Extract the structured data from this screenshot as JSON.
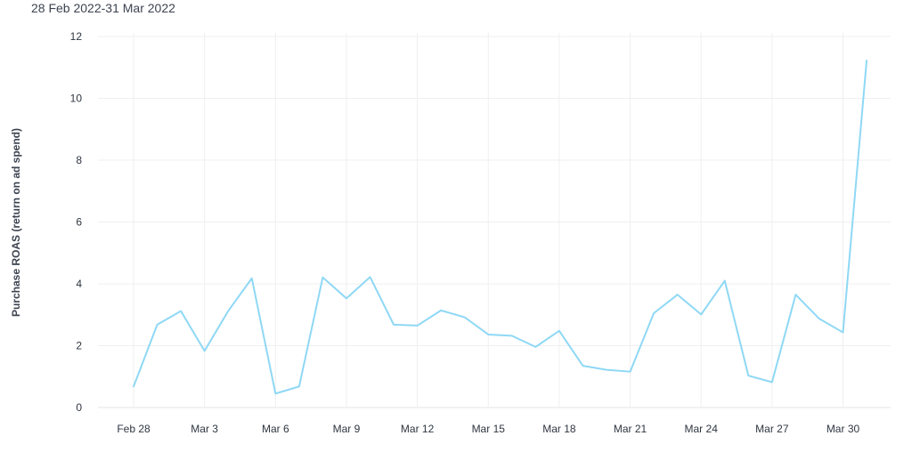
{
  "subtitle": "28 Feb 2022-31 Mar 2022",
  "chart_data": {
    "type": "line",
    "title": "",
    "subtitle": "28 Feb 2022-31 Mar 2022",
    "xlabel": "",
    "ylabel": "Purchase ROAS (return on ad spend)",
    "ylim": [
      0,
      12
    ],
    "yticks": [
      0,
      2,
      4,
      6,
      8,
      10,
      12
    ],
    "xticks": [
      "Feb 28",
      "Mar 3",
      "Mar 6",
      "Mar 9",
      "Mar 12",
      "Mar 15",
      "Mar 18",
      "Mar 21",
      "Mar 24",
      "Mar 27",
      "Mar 30"
    ],
    "grid": true,
    "line_color": "#8fd8f5",
    "x": [
      "2022-02-28",
      "2022-03-01",
      "2022-03-02",
      "2022-03-03",
      "2022-03-04",
      "2022-03-05",
      "2022-03-06",
      "2022-03-07",
      "2022-03-08",
      "2022-03-09",
      "2022-03-10",
      "2022-03-11",
      "2022-03-12",
      "2022-03-13",
      "2022-03-14",
      "2022-03-15",
      "2022-03-16",
      "2022-03-17",
      "2022-03-18",
      "2022-03-19",
      "2022-03-20",
      "2022-03-21",
      "2022-03-22",
      "2022-03-23",
      "2022-03-24",
      "2022-03-25",
      "2022-03-26",
      "2022-03-27",
      "2022-03-28",
      "2022-03-29",
      "2022-03-30",
      "2022-03-31"
    ],
    "series": [
      {
        "values": [
          0.68,
          2.68,
          3.12,
          1.83,
          3.12,
          4.18,
          0.45,
          0.68,
          4.21,
          3.53,
          4.22,
          2.68,
          2.65,
          3.14,
          2.92,
          2.36,
          2.32,
          1.96,
          2.48,
          1.35,
          1.22,
          1.16,
          3.05,
          3.65,
          3.01,
          4.1,
          1.03,
          0.82,
          3.65,
          2.87,
          2.43,
          11.22
        ]
      }
    ]
  }
}
